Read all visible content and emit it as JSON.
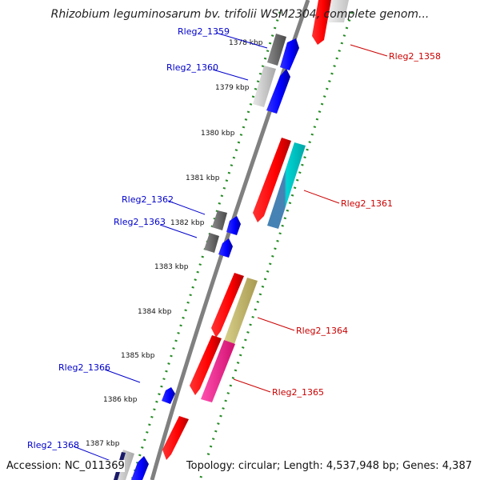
{
  "title": "Rhizobium leguminosarum bv. trifolii WSM2304, complete genom...",
  "footer": {
    "accession": "Accession: NC_011369",
    "summary": "Topology: circular; Length: 4,537,948 bp; Genes: 4,387"
  },
  "colors": {
    "backbone": "#808080",
    "ticks": "#228B22",
    "forward_label": "#0000cc",
    "reverse_label": "#cc0000"
  },
  "ticks": [
    {
      "label": "1378 kbp"
    },
    {
      "label": "1379 kbp"
    },
    {
      "label": "1380 kbp"
    },
    {
      "label": "1381 kbp"
    },
    {
      "label": "1382 kbp"
    },
    {
      "label": "1383 kbp"
    },
    {
      "label": "1384 kbp"
    },
    {
      "label": "1385 kbp"
    },
    {
      "label": "1386 kbp"
    },
    {
      "label": "1387 kbp"
    }
  ],
  "genes": [
    {
      "label": "Rleg2_1358",
      "strand": "reverse"
    },
    {
      "label": "Rleg2_1359",
      "strand": "forward"
    },
    {
      "label": "Rleg2_1360",
      "strand": "forward"
    },
    {
      "label": "Rleg2_1361",
      "strand": "reverse"
    },
    {
      "label": "Rleg2_1362",
      "strand": "forward"
    },
    {
      "label": "Rleg2_1363",
      "strand": "forward"
    },
    {
      "label": "Rleg2_1364",
      "strand": "reverse"
    },
    {
      "label": "Rleg2_1365",
      "strand": "reverse"
    },
    {
      "label": "Rleg2_1366",
      "strand": "forward"
    },
    {
      "label": "Rleg2_1368",
      "strand": "forward"
    }
  ]
}
